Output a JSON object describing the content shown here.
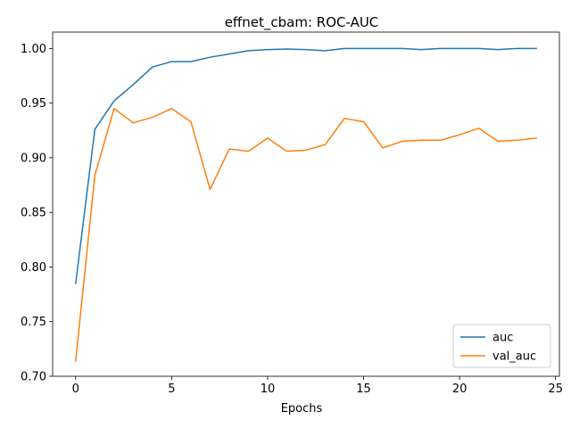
{
  "chart_data": {
    "type": "line",
    "title": "effnet_cbam: ROC-AUC",
    "xlabel": "Epochs",
    "ylabel": "",
    "xlim": [
      -1.2,
      25.2
    ],
    "ylim": [
      0.7,
      1.015
    ],
    "xticks": [
      0,
      5,
      10,
      15,
      20,
      25
    ],
    "yticks": [
      0.7,
      0.75,
      0.8,
      0.85,
      0.9,
      0.95,
      1.0
    ],
    "ytick_labels": [
      "0.70",
      "0.75",
      "0.80",
      "0.85",
      "0.90",
      "0.95",
      "1.00"
    ],
    "grid": false,
    "legend_position": "lower-right",
    "x": [
      0,
      1,
      2,
      3,
      4,
      5,
      6,
      7,
      8,
      9,
      10,
      11,
      12,
      13,
      14,
      15,
      16,
      17,
      18,
      19,
      20,
      21,
      22,
      23,
      24
    ],
    "series": [
      {
        "name": "auc",
        "color": "#1f77b4",
        "values": [
          0.785,
          0.926,
          0.952,
          0.967,
          0.983,
          0.988,
          0.988,
          0.992,
          0.995,
          0.998,
          0.999,
          0.9995,
          0.999,
          0.998,
          1.0,
          1.0,
          1.0,
          1.0,
          0.999,
          1.0,
          1.0,
          1.0,
          0.999,
          1.0,
          1.0
        ]
      },
      {
        "name": "val_auc",
        "color": "#ff7f0e",
        "values": [
          0.714,
          0.884,
          0.945,
          0.932,
          0.937,
          0.945,
          0.933,
          0.871,
          0.908,
          0.906,
          0.918,
          0.906,
          0.907,
          0.912,
          0.936,
          0.933,
          0.909,
          0.915,
          0.916,
          0.916,
          0.921,
          0.927,
          0.915,
          0.916,
          0.918
        ]
      }
    ]
  }
}
